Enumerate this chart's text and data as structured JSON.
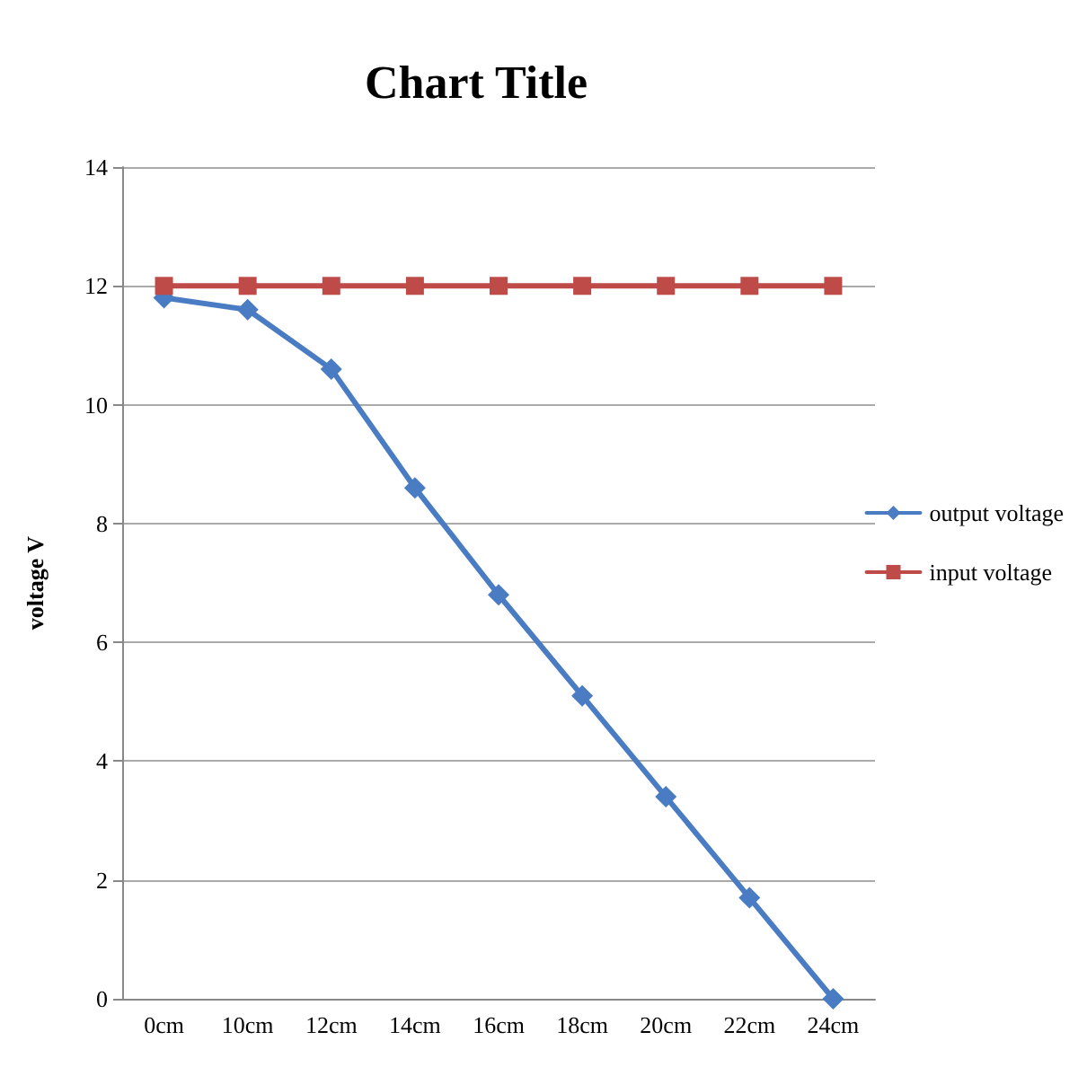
{
  "chart_data": {
    "type": "line",
    "title": "Chart Title",
    "ylabel": "voltage V",
    "categories": [
      "0cm",
      "10cm",
      "12cm",
      "14cm",
      "16cm",
      "18cm",
      "20cm",
      "22cm",
      "24cm"
    ],
    "series": [
      {
        "name": "output voltage",
        "color": "#4a7cc4",
        "marker": "diamond",
        "values": [
          11.8,
          11.6,
          10.6,
          8.6,
          6.8,
          5.1,
          3.4,
          1.7,
          0
        ]
      },
      {
        "name": "input voltage",
        "color": "#be4b48",
        "marker": "square",
        "values": [
          12,
          12,
          12,
          12,
          12,
          12,
          12,
          12,
          12
        ]
      }
    ],
    "ylim": [
      0,
      14
    ],
    "yticks": [
      0,
      2,
      4,
      6,
      8,
      10,
      12,
      14
    ],
    "grid": "y",
    "legend": "right",
    "line_style": "solid"
  }
}
